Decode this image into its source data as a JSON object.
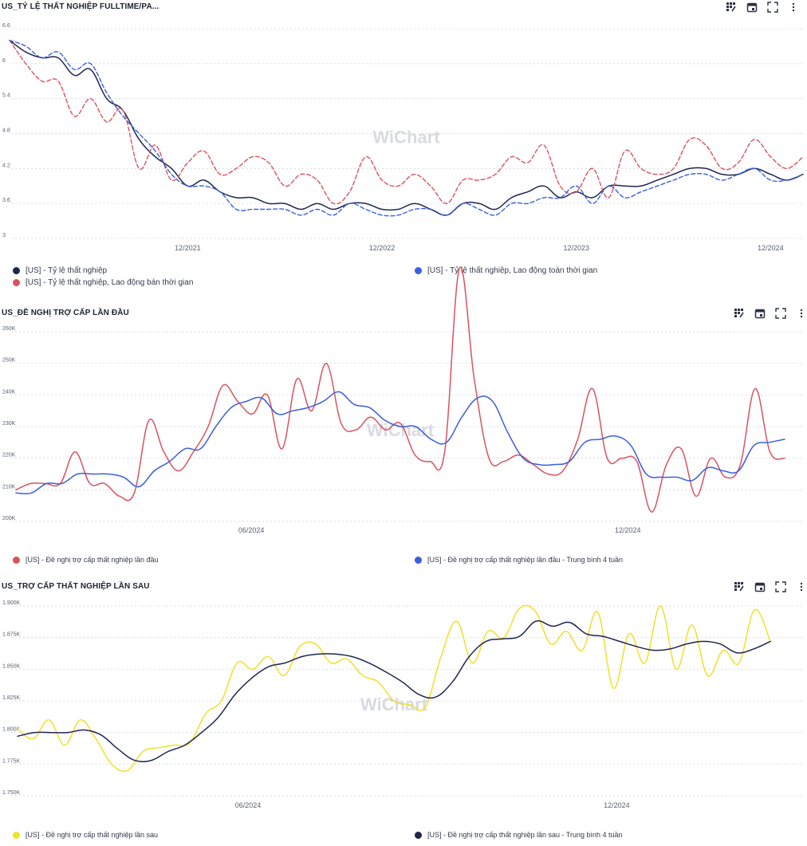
{
  "colors": {
    "navy": "#1e2650",
    "blue": "#3a5fe0",
    "red": "#d9535f",
    "yellow": "#f2e02a",
    "grid": "#d8dbe3",
    "text": "#5a6072"
  },
  "toolbar_icons": [
    "chart-settings-icon",
    "calendar-icon",
    "fullscreen-icon",
    "more-icon"
  ],
  "watermark": "WiChart",
  "chart_data": [
    {
      "type": "line",
      "title": "US_TỶ LỆ THẤT NGHIỆP FULLTIME/PA...",
      "yticks": [
        "6.6",
        "6",
        "5.4",
        "4.8",
        "4.2",
        "3.6",
        "3"
      ],
      "ylim": [
        3,
        6.6
      ],
      "xlim": [
        0,
        49
      ],
      "xticks": [
        {
          "x": 11,
          "label": "12/2021"
        },
        {
          "x": 23,
          "label": "12/2022"
        },
        {
          "x": 35,
          "label": "12/2023"
        },
        {
          "x": 47,
          "label": "12/2024"
        }
      ],
      "series": [
        {
          "name": "[US] - Tỷ lệ thất nghiệp",
          "color": "#1e2650",
          "dash": false,
          "values": [
            6.4,
            6.2,
            6.1,
            6.1,
            5.8,
            5.9,
            5.4,
            5.2,
            4.7,
            4.4,
            4.2,
            3.9,
            4.0,
            3.8,
            3.7,
            3.7,
            3.6,
            3.6,
            3.5,
            3.6,
            3.5,
            3.6,
            3.6,
            3.5,
            3.5,
            3.6,
            3.5,
            3.4,
            3.6,
            3.6,
            3.5,
            3.7,
            3.8,
            3.9,
            3.7,
            3.8,
            3.7,
            3.9,
            3.9,
            3.9,
            4.0,
            4.1,
            4.2,
            4.2,
            4.1,
            4.1,
            4.2,
            4.1,
            4.0,
            4.1
          ]
        },
        {
          "name": "[US] - Tỷ lệ thất nghiệp, Lao động bán thời gian",
          "color": "#d9535f",
          "dash": true,
          "values": [
            6.4,
            6.0,
            5.7,
            5.7,
            5.1,
            5.4,
            5.0,
            5.2,
            4.2,
            4.6,
            4.0,
            4.3,
            4.5,
            4.1,
            4.2,
            4.4,
            4.3,
            3.9,
            4.1,
            4.0,
            3.6,
            3.8,
            4.4,
            4.0,
            3.9,
            4.1,
            3.9,
            3.6,
            4.0,
            4.0,
            4.1,
            4.4,
            4.3,
            4.6,
            3.9,
            3.8,
            4.2,
            3.7,
            4.5,
            4.2,
            4.1,
            4.2,
            4.7,
            4.6,
            4.2,
            4.3,
            4.7,
            4.4,
            4.2,
            4.4
          ]
        },
        {
          "name": "[US] - Tỷ lệ thất nghiệp, Lao động toàn thời gian",
          "color": "#3a5fe0",
          "dash": true,
          "values": [
            6.4,
            6.3,
            6.1,
            6.2,
            5.9,
            6.0,
            5.5,
            5.1,
            4.8,
            4.5,
            4.1,
            3.9,
            3.9,
            3.8,
            3.5,
            3.5,
            3.5,
            3.5,
            3.4,
            3.5,
            3.4,
            3.6,
            3.5,
            3.4,
            3.4,
            3.5,
            3.5,
            3.4,
            3.6,
            3.5,
            3.4,
            3.6,
            3.6,
            3.7,
            3.7,
            3.9,
            3.6,
            3.9,
            3.7,
            3.8,
            3.9,
            4.0,
            4.1,
            4.1,
            4.0,
            4.1,
            4.2,
            4.0,
            4.0,
            4.1
          ]
        }
      ]
    },
    {
      "type": "line",
      "title": "US_ĐỀ NGHỊ TRỢ CẤP LẦN ĐẦU",
      "yticks": [
        "260K",
        "250K",
        "240K",
        "230K",
        "220K",
        "210K",
        "200K"
      ],
      "ylim": [
        200,
        260
      ],
      "xlim": [
        0,
        49
      ],
      "xticks": [
        {
          "x": 15,
          "label": "06/2024"
        },
        {
          "x": 39,
          "label": "12/2024"
        }
      ],
      "series": [
        {
          "name": "[US] - Đề nghị trợ cấp thất nghiệp lần đầu",
          "color": "#d9535f",
          "dash": false,
          "values": [
            210,
            212,
            212,
            212,
            222,
            212,
            212,
            208,
            209,
            232,
            222,
            216,
            222,
            230,
            243,
            238,
            234,
            240,
            223,
            245,
            235,
            250,
            231,
            229,
            233,
            229,
            231,
            221,
            219,
            222,
            280,
            245,
            220,
            219,
            221,
            218,
            215,
            216,
            226,
            242,
            220,
            220,
            219,
            203,
            218,
            223,
            208,
            220,
            214,
            218,
            242,
            222,
            220
          ]
        },
        {
          "name": "[US] - Đề nghị trợ cấp thất nghiệp lần đầu - Trung bình 4 tuần",
          "color": "#3a5fe0",
          "dash": false,
          "values": [
            209,
            209,
            212,
            212,
            215,
            215,
            215,
            214,
            211,
            216,
            219,
            223,
            223,
            230,
            236,
            238,
            239,
            234,
            235,
            236,
            238,
            241,
            237,
            236,
            232,
            230,
            230,
            226,
            225,
            233,
            239,
            238,
            228,
            220,
            218,
            218,
            219,
            225,
            226,
            227,
            224,
            215,
            214,
            214,
            213,
            217,
            216,
            216,
            224,
            225,
            226
          ]
        }
      ]
    },
    {
      "type": "line",
      "title": "US_TRỢ CẤP THẤT NGHIỆP LẦN SAU",
      "yticks": [
        "1.900K",
        "1.875K",
        "1.850K",
        "1.825K",
        "1.800K",
        "1.775K",
        "1.750K"
      ],
      "ylim": [
        1750,
        1900
      ],
      "xlim": [
        0,
        49
      ],
      "xticks": [
        {
          "x": 15,
          "label": "06/2024"
        },
        {
          "x": 39,
          "label": "12/2024"
        }
      ],
      "series": [
        {
          "name": "[US] - Đề nghị trợ cấp thất nghiệp lần sau",
          "color": "#f2e02a",
          "dash": false,
          "values": [
            1803,
            1795,
            1810,
            1790,
            1810,
            1795,
            1775,
            1770,
            1785,
            1788,
            1790,
            1792,
            1815,
            1825,
            1855,
            1850,
            1860,
            1845,
            1868,
            1870,
            1855,
            1858,
            1845,
            1840,
            1825,
            1822,
            1820,
            1860,
            1888,
            1855,
            1880,
            1875,
            1898,
            1896,
            1870,
            1880,
            1865,
            1895,
            1835,
            1878,
            1855,
            1900,
            1850,
            1885,
            1845,
            1865,
            1855,
            1897,
            1872
          ]
        },
        {
          "name": "[US] - Đề nghị trợ cấp thất nghiệp lần sau - Trung bình 4 tuần",
          "color": "#1e2650",
          "dash": false,
          "values": [
            1797,
            1800,
            1800,
            1800,
            1802,
            1798,
            1787,
            1778,
            1778,
            1785,
            1790,
            1800,
            1812,
            1830,
            1843,
            1852,
            1855,
            1860,
            1862,
            1862,
            1860,
            1855,
            1848,
            1840,
            1830,
            1828,
            1840,
            1860,
            1872,
            1874,
            1876,
            1888,
            1884,
            1887,
            1878,
            1876,
            1872,
            1868,
            1865,
            1866,
            1870,
            1872,
            1870,
            1863,
            1866,
            1872
          ]
        }
      ]
    }
  ]
}
